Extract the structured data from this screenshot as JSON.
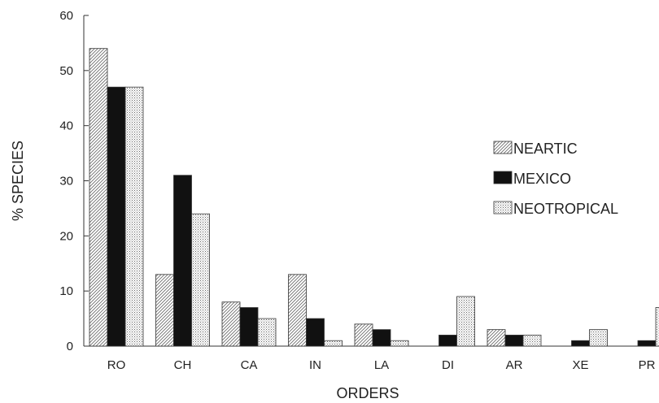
{
  "chart_data": {
    "type": "bar",
    "title": "",
    "xlabel": "ORDERS",
    "ylabel": "% SPECIES",
    "ylim": [
      0,
      60
    ],
    "yticks": [
      0,
      10,
      20,
      30,
      40,
      50,
      60
    ],
    "categories": [
      "RO",
      "CH",
      "CA",
      "IN",
      "LA",
      "DI",
      "AR",
      "XE",
      "PR"
    ],
    "series": [
      {
        "name": "NEARTIC",
        "pattern": "diagonal",
        "color": "#888888",
        "values": [
          54,
          13,
          8,
          13,
          4,
          0,
          3,
          0,
          0
        ]
      },
      {
        "name": "MEXICO",
        "pattern": "solid",
        "color": "#111111",
        "values": [
          47,
          31,
          7,
          5,
          3,
          2,
          2,
          1,
          1
        ]
      },
      {
        "name": "NEOTROPICAL",
        "pattern": "dotted",
        "color": "#999999",
        "values": [
          47,
          24,
          5,
          1,
          1,
          9,
          2,
          3,
          7
        ]
      }
    ],
    "legend_position": "right",
    "grid": false
  }
}
